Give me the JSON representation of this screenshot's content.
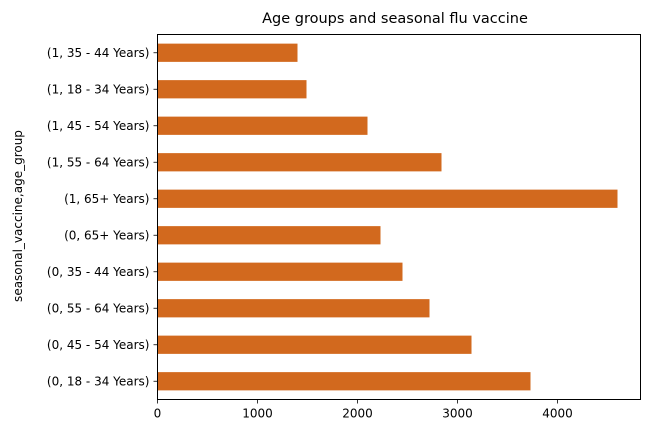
{
  "colors": {
    "bar": "#d2691e",
    "axis": "#000000",
    "background": "#ffffff"
  },
  "chart_data": {
    "type": "bar",
    "orientation": "horizontal",
    "title": "Age groups and seasonal flu vaccine",
    "xlabel": "",
    "ylabel": "seasonal_vaccine,age_group",
    "grid": false,
    "legend": "none",
    "xlim": [
      0,
      4830
    ],
    "xticks": [
      0,
      1000,
      2000,
      3000,
      4000
    ],
    "categories": [
      "(0, 18 - 34 Years)",
      "(0, 45 - 54 Years)",
      "(0, 55 - 64 Years)",
      "(0, 35 - 44 Years)",
      "(0, 65+ Years)",
      "(1, 65+ Years)",
      "(1, 55 - 64 Years)",
      "(1, 45 - 54 Years)",
      "(1, 18 - 34 Years)",
      "(1, 35 - 44 Years)"
    ],
    "values": [
      3730,
      3140,
      2720,
      2450,
      2230,
      4600,
      2840,
      2100,
      1490,
      1400
    ]
  }
}
